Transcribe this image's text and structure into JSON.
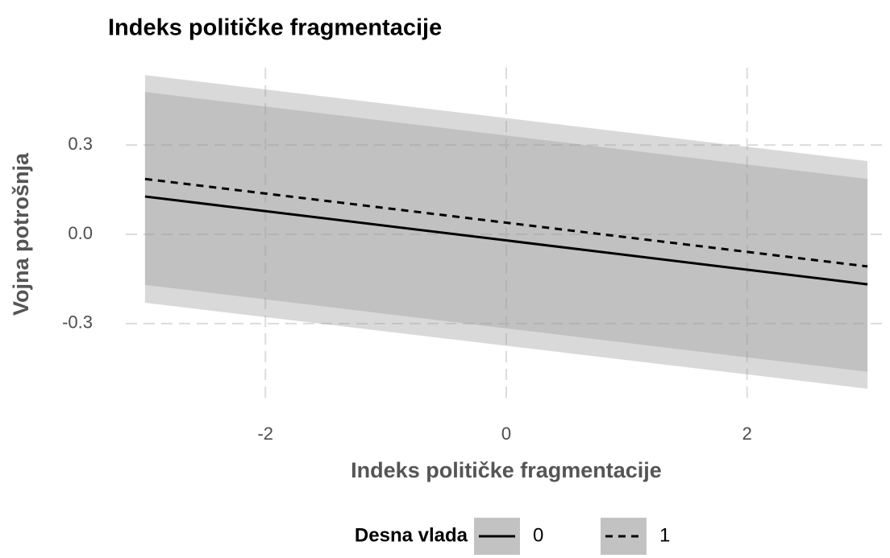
{
  "chart_data": {
    "type": "line",
    "title": "Indeks političke fragmentacije",
    "x_label": "Indeks političke fragmentacije",
    "y_label": "Vojna potrošnja",
    "legend_title": "Desna vlada",
    "legend_position": "bottom",
    "grid": true,
    "x": [
      -3,
      3
    ],
    "series": [
      {
        "name": "0",
        "color": "#000000",
        "linetype": "solid",
        "ribbon_color": "#999999",
        "values": [
          0.127,
          -0.168
        ],
        "lower": [
          -0.23,
          -0.519
        ],
        "upper": [
          0.478,
          0.186
        ]
      },
      {
        "name": "1",
        "color": "#000000",
        "linetype": "dashed",
        "ribbon_color": "#999999",
        "values": [
          0.186,
          -0.108
        ],
        "lower": [
          -0.17,
          -0.462
        ],
        "upper": [
          0.535,
          0.246
        ]
      }
    ],
    "xlim": [
      -3.16,
      3.16
    ],
    "xticks": [
      -2,
      0,
      2
    ],
    "ylim": [
      -0.56,
      0.56
    ],
    "yticks": [
      -0.3,
      {
        "value": 0,
        "label": "0.0"
      },
      0.3
    ]
  }
}
